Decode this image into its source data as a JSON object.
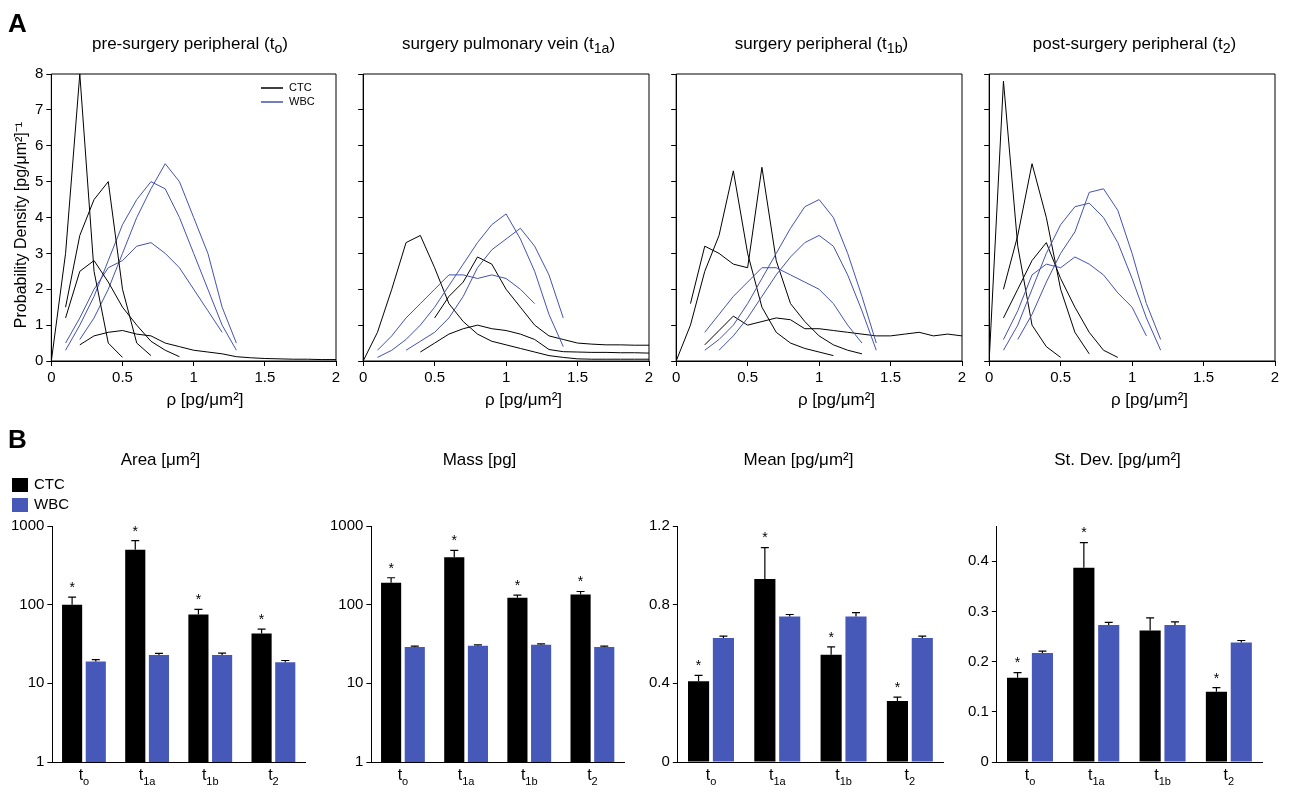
{
  "chart_data": [
    {
      "type": "line",
      "title": "pre-surgery peripheral (t$_{o}$)",
      "xlabel": "ρ [pg/μm²]",
      "ylabel": "Probability Density [pg/μm²]⁻¹",
      "annotations": [
        "A"
      ],
      "xlim": [
        0,
        2
      ],
      "ylim": [
        0,
        8
      ],
      "xticks": [
        0,
        0.5,
        1,
        1.5,
        2
      ],
      "yticks": [
        0,
        1,
        2,
        3,
        4,
        5,
        6,
        7,
        8
      ],
      "legend": "top right",
      "marker": "none",
      "x": [
        0,
        0.1,
        0.2,
        0.3,
        0.4,
        0.5,
        0.6,
        0.7,
        0.8,
        0.9,
        1,
        1.1,
        1.2,
        1.3,
        1.4,
        1.5,
        1.6,
        1.7,
        1.8,
        1.9,
        2
      ],
      "series": [
        {
          "name": "CTC",
          "color": "#000000",
          "values": [
            0,
            3,
            8,
            2.5,
            0.5,
            0.1,
            null,
            null,
            null,
            null,
            null,
            null,
            null,
            null,
            null,
            null,
            null,
            null,
            null,
            null,
            null
          ]
        },
        {
          "color": "#000000",
          "values": [
            null,
            1.5,
            3.5,
            4.5,
            5,
            2,
            0.5,
            0.15,
            null,
            null,
            null,
            null,
            null,
            null,
            null,
            null,
            null,
            null,
            null,
            null,
            null
          ]
        },
        {
          "color": "#000000",
          "values": [
            null,
            1.2,
            2.5,
            2.8,
            2.2,
            1.5,
            1,
            0.55,
            0.3,
            0.12,
            null,
            null,
            null,
            null,
            null,
            null,
            null,
            null,
            null,
            null,
            null
          ]
        },
        {
          "name": "WBC",
          "color": "#4352b0",
          "values": [
            null,
            0.3,
            1,
            1.8,
            2.8,
            3.8,
            4.5,
            5,
            4.8,
            4,
            3,
            2,
            1,
            0.3,
            null,
            null,
            null,
            null,
            null,
            null,
            null
          ]
        },
        {
          "color": "#4352b0",
          "values": [
            null,
            null,
            0.6,
            1.2,
            2,
            3,
            4,
            4.8,
            5.5,
            5,
            4,
            3,
            1.5,
            0.5,
            null,
            null,
            null,
            null,
            null,
            null,
            null
          ]
        },
        {
          "color": "#4352b0",
          "values": [
            null,
            0.5,
            1.2,
            2,
            2.6,
            2.8,
            3.2,
            3.3,
            3,
            2.6,
            2,
            1.4,
            0.8,
            null,
            null,
            null,
            null,
            null,
            null,
            null,
            null
          ]
        },
        {
          "color": "#000000",
          "values": [
            null,
            null,
            0.45,
            0.7,
            0.8,
            0.85,
            0.75,
            0.7,
            0.5,
            0.4,
            0.3,
            0.25,
            0.2,
            0.12,
            0.09,
            0.07,
            0.06,
            0.05,
            0.05,
            0.04,
            0.04
          ]
        }
      ]
    },
    {
      "type": "line",
      "title": "surgery pulmonary vein (t$_{1a}$)",
      "xlabel": "ρ [pg/μm²]",
      "xlim": [
        0,
        2
      ],
      "ylim": [
        0,
        8
      ],
      "xticks": [
        0,
        0.5,
        1,
        1.5,
        2
      ],
      "yticks": [
        0,
        1,
        2,
        3,
        4,
        5,
        6,
        7,
        8
      ],
      "tick_labels": "x",
      "marker": "none",
      "x": [
        0,
        0.1,
        0.2,
        0.3,
        0.4,
        0.5,
        0.6,
        0.7,
        0.8,
        0.9,
        1,
        1.1,
        1.2,
        1.3,
        1.4,
        1.5,
        1.6,
        1.7,
        1.8,
        1.9,
        2
      ],
      "series": [
        {
          "color": "#4352b0",
          "values": [
            null,
            0.1,
            0.3,
            0.6,
            1,
            1.5,
            2.1,
            2.7,
            3.3,
            3.8,
            4.1,
            3.4,
            2.5,
            1.3,
            0.4,
            null,
            null,
            null,
            null,
            null,
            null
          ]
        },
        {
          "color": "#4352b0",
          "values": [
            null,
            null,
            null,
            0.3,
            0.55,
            0.8,
            1.2,
            1.8,
            2.6,
            3.1,
            3.4,
            3.7,
            3.2,
            2.4,
            1.2,
            null,
            null,
            null,
            null,
            null,
            null
          ]
        },
        {
          "color": "#4352b0",
          "values": [
            null,
            0.3,
            0.7,
            1.2,
            1.6,
            2,
            2.4,
            2.4,
            2.3,
            2.4,
            2.3,
            2,
            1.6,
            null,
            null,
            null,
            null,
            null,
            null,
            null,
            null
          ]
        },
        {
          "color": "#000000",
          "values": [
            0,
            0.8,
            2,
            3.3,
            3.5,
            2.6,
            1.6,
            1.1,
            0.75,
            0.55,
            0.45,
            0.35,
            0.25,
            0.15,
            0.1,
            0.06,
            0.05,
            0.05,
            0.05,
            0.05,
            0.05
          ]
        },
        {
          "color": "#000000",
          "values": [
            null,
            null,
            null,
            null,
            null,
            1.2,
            1.8,
            2.2,
            2.9,
            2.7,
            2,
            1.5,
            1,
            0.7,
            0.6,
            0.5,
            0.47,
            0.45,
            0.45,
            0.44,
            0.44
          ]
        },
        {
          "color": "#000000",
          "values": [
            null,
            null,
            null,
            null,
            0.25,
            0.5,
            0.75,
            0.9,
            1,
            0.9,
            0.85,
            0.75,
            0.6,
            0.32,
            0.26,
            0.25,
            0.24,
            0.24,
            0.23,
            0.23,
            0.22
          ]
        }
      ]
    },
    {
      "type": "line",
      "title": "surgery peripheral (t$_{1b}$)",
      "xlabel": "ρ [pg/μm²]",
      "xlim": [
        0,
        2
      ],
      "ylim": [
        0,
        8
      ],
      "xticks": [
        0,
        0.5,
        1,
        1.5,
        2
      ],
      "yticks": [
        0,
        1,
        2,
        3,
        4,
        5,
        6,
        7,
        8
      ],
      "tick_labels": "x",
      "marker": "none",
      "x": [
        0,
        0.1,
        0.2,
        0.3,
        0.4,
        0.5,
        0.6,
        0.7,
        0.8,
        0.9,
        1,
        1.1,
        1.2,
        1.3,
        1.4,
        1.5,
        1.6,
        1.7,
        1.8,
        1.9,
        2
      ],
      "series": [
        {
          "color": "#4352b0",
          "values": [
            null,
            null,
            0.3,
            0.6,
            1,
            1.6,
            2.3,
            3,
            3.7,
            4.3,
            4.5,
            4,
            3,
            1.8,
            0.5,
            null,
            null,
            null,
            null,
            null,
            null
          ]
        },
        {
          "color": "#4352b0",
          "values": [
            null,
            null,
            null,
            0.3,
            0.7,
            1.2,
            1.8,
            2.4,
            2.9,
            3.3,
            3.5,
            3.2,
            2.4,
            1.4,
            0.3,
            null,
            null,
            null,
            null,
            null,
            null
          ]
        },
        {
          "color": "#4352b0",
          "values": [
            null,
            null,
            0.8,
            1.3,
            1.8,
            2.2,
            2.6,
            2.6,
            2.4,
            2.2,
            2,
            1.6,
            1,
            0.5,
            null,
            null,
            null,
            null,
            null,
            null,
            null
          ]
        },
        {
          "color": "#000000",
          "values": [
            0,
            1,
            2.5,
            3.5,
            5.3,
            3,
            1.5,
            0.8,
            0.5,
            0.35,
            0.25,
            0.15,
            null,
            null,
            null,
            null,
            null,
            null,
            null,
            null,
            null
          ]
        },
        {
          "color": "#000000",
          "values": [
            null,
            1.6,
            3.2,
            3,
            2.7,
            2.6,
            5.4,
            2.8,
            1.6,
            1.1,
            0.7,
            0.45,
            0.3,
            0.2,
            null,
            null,
            null,
            null,
            null,
            null,
            null
          ]
        },
        {
          "color": "#000000",
          "values": [
            null,
            null,
            0.45,
            0.85,
            1.25,
            1,
            1.1,
            1.2,
            1.15,
            0.9,
            0.9,
            0.85,
            0.8,
            0.75,
            0.7,
            0.7,
            0.75,
            0.8,
            0.7,
            0.75,
            0.7
          ]
        }
      ]
    },
    {
      "type": "line",
      "title": "post-surgery peripheral (t$_{2}$)",
      "xlabel": "ρ [pg/μm²]",
      "xlim": [
        0,
        2
      ],
      "ylim": [
        0,
        8
      ],
      "xticks": [
        0,
        0.5,
        1,
        1.5,
        2
      ],
      "yticks": [
        0,
        1,
        2,
        3,
        4,
        5,
        6,
        7,
        8
      ],
      "tick_labels": "x",
      "marker": "none",
      "x": [
        0,
        0.1,
        0.2,
        0.3,
        0.4,
        0.5,
        0.6,
        0.7,
        0.8,
        0.9,
        1,
        1.1,
        1.2
      ],
      "series": [
        {
          "color": "#4352b0",
          "values": [
            null,
            0.3,
            1,
            2,
            3,
            3.8,
            4.3,
            4.4,
            4,
            3.3,
            2.3,
            1.2,
            0.3
          ]
        },
        {
          "color": "#4352b0",
          "values": [
            null,
            null,
            0.6,
            1.3,
            2.2,
            3,
            3.6,
            4.7,
            4.8,
            4.2,
            3,
            1.6,
            0.6
          ]
        },
        {
          "color": "#4352b0",
          "values": [
            null,
            0.6,
            1.4,
            2.4,
            2.7,
            2.6,
            2.9,
            2.7,
            2.4,
            1.9,
            1.5,
            0.7,
            null
          ]
        },
        {
          "color": "#000000",
          "values": [
            0,
            7.8,
            3.2,
            1,
            0.4,
            0.1,
            null,
            null,
            null,
            null,
            null,
            null,
            null
          ]
        },
        {
          "color": "#000000",
          "values": [
            null,
            2,
            3.5,
            5.5,
            4,
            2,
            0.8,
            0.2,
            null,
            null,
            null,
            null,
            null
          ]
        },
        {
          "color": "#000000",
          "values": [
            null,
            1.2,
            2,
            2.8,
            3.3,
            2.3,
            1.5,
            0.8,
            0.3,
            0.1,
            null,
            null,
            null
          ]
        }
      ]
    },
    {
      "type": "bar",
      "title": "Area [μm²]",
      "annotations": [
        "B"
      ],
      "categories": [
        "t$_{o}$",
        "t$_{1a}$",
        "t$_{1b}$",
        "t$_{2}$"
      ],
      "log": "y",
      "ylim": [
        1,
        1000
      ],
      "yticks": [
        1,
        10,
        100,
        1000
      ],
      "legend": "top left",
      "series": [
        {
          "name": "CTC",
          "color": "#000000",
          "values": [
            100,
            500,
            75,
            43
          ],
          "errors": [
            [
              100,
              125
            ],
            [
              500,
              650
            ],
            [
              75,
              87
            ],
            [
              43,
              49
            ]
          ],
          "value_labels": [
            "*",
            "*",
            "*",
            "*"
          ]
        },
        {
          "name": "WBC",
          "color": "#4659b8",
          "values": [
            19,
            23,
            23,
            18.5
          ],
          "errors": [
            [
              19,
              20
            ],
            [
              23,
              24.1
            ],
            [
              23,
              24.2
            ],
            [
              18.5,
              19.5
            ]
          ]
        }
      ]
    },
    {
      "type": "bar",
      "title": "Mass [pg]",
      "categories": [
        "t$_{o}$",
        "t$_{1a}$",
        "t$_{1b}$",
        "t$_{2}$"
      ],
      "log": "y",
      "ylim": [
        1,
        1000
      ],
      "yticks": [
        1,
        10,
        100,
        1000
      ],
      "series": [
        {
          "color": "#000000",
          "values": [
            190,
            400,
            122,
            135
          ],
          "errors": [
            [
              190,
              220
            ],
            [
              400,
              490
            ],
            [
              122,
              132
            ],
            [
              135,
              147
            ]
          ],
          "value_labels": [
            "*",
            "*",
            "*",
            "*"
          ]
        },
        {
          "color": "#4659b8",
          "values": [
            29,
            30,
            31,
            29
          ],
          "errors": [
            [
              29,
              29.8
            ],
            [
              30,
              30.9
            ],
            [
              31,
              31.8
            ],
            [
              29,
              29.7
            ]
          ]
        }
      ]
    },
    {
      "type": "bar",
      "title": "Mean [pg/μm²]",
      "categories": [
        "t$_{o}$",
        "t$_{1a}$",
        "t$_{1b}$",
        "t$_{2}$"
      ],
      "ylim": [
        0,
        1.2
      ],
      "yticks": [
        0,
        0.4,
        0.8,
        1.2
      ],
      "series": [
        {
          "color": "#000000",
          "values": [
            0.41,
            0.93,
            0.545,
            0.31
          ],
          "errors": [
            [
              0.41,
              0.44
            ],
            [
              0.93,
              1.09
            ],
            [
              0.545,
              0.585
            ],
            [
              0.31,
              0.33
            ]
          ],
          "value_labels": [
            "*",
            "*",
            "*",
            "*"
          ]
        },
        {
          "color": "#4659b8",
          "values": [
            0.63,
            0.74,
            0.74,
            0.63
          ],
          "errors": [
            [
              0.63,
              0.64
            ],
            [
              0.74,
              0.75
            ],
            [
              0.74,
              0.76
            ],
            [
              0.63,
              0.64
            ]
          ]
        }
      ]
    },
    {
      "type": "bar",
      "title": "St. Dev. [pg/μm²]",
      "categories": [
        "t$_{o}$",
        "t$_{1a}$",
        "t$_{1b}$",
        "t$_{2}$"
      ],
      "ylim": [
        0,
        0.47
      ],
      "yticks": [
        0,
        0.1,
        0.2,
        0.3,
        0.4
      ],
      "series": [
        {
          "color": "#000000",
          "values": [
            0.168,
            0.387,
            0.262,
            0.14
          ],
          "errors": [
            [
              0.168,
              0.178
            ],
            [
              0.387,
              0.437
            ],
            [
              0.262,
              0.287
            ],
            [
              0.14,
              0.148
            ]
          ],
          "value_labels": [
            "*",
            "*",
            null,
            "*"
          ]
        },
        {
          "color": "#4659b8",
          "values": [
            0.217,
            0.273,
            0.273,
            0.238
          ],
          "errors": [
            [
              0.217,
              0.221
            ],
            [
              0.273,
              0.278
            ],
            [
              0.273,
              0.279
            ],
            [
              0.238,
              0.242
            ]
          ]
        }
      ]
    }
  ]
}
